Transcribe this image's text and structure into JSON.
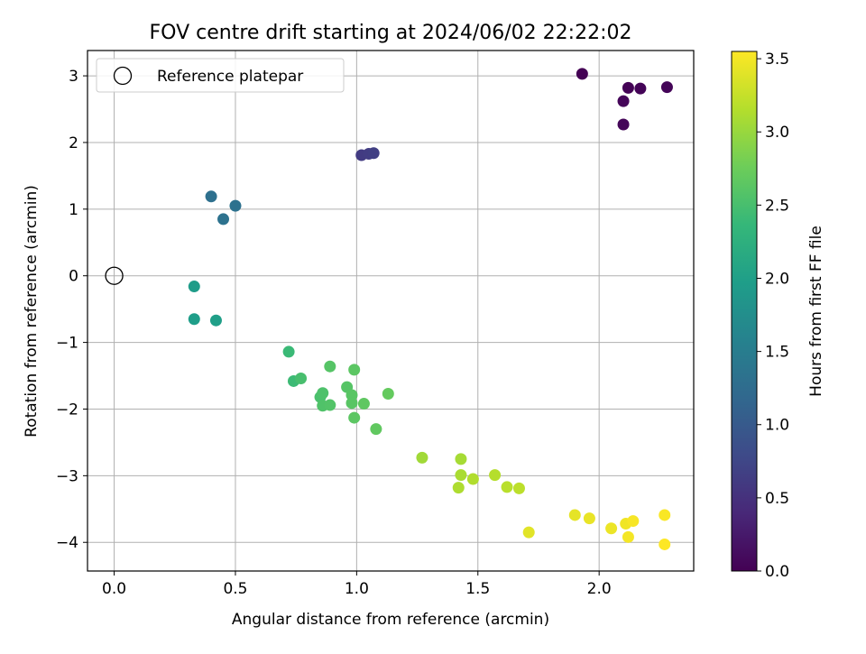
{
  "chart_data": {
    "type": "scatter",
    "title": "FOV centre drift starting at 2024/06/02 22:22:02",
    "xlabel": "Angular distance from reference (arcmin)",
    "ylabel": "Rotation from reference (arcmin)",
    "xlim": [
      -0.11,
      2.39
    ],
    "ylim": [
      -4.43,
      3.38
    ],
    "xticks": [
      0.0,
      0.5,
      1.0,
      1.5,
      2.0
    ],
    "xtick_labels": [
      "0.0",
      "0.5",
      "1.0",
      "1.5",
      "2.0"
    ],
    "yticks": [
      3,
      2,
      1,
      0,
      -1,
      -2,
      -3,
      -4
    ],
    "ytick_labels": [
      "3",
      "2",
      "1",
      "0",
      "−1",
      "−2",
      "−3",
      "−4"
    ],
    "grid": true,
    "legend": {
      "position": "upper-left",
      "entries": [
        "Reference platepar"
      ]
    },
    "reference_point": {
      "x": 0.0,
      "y": 0.0
    },
    "colorbar": {
      "label": "Hours from first FF file",
      "range": [
        0.0,
        3.55
      ],
      "ticks": [
        0.0,
        0.5,
        1.0,
        1.5,
        2.0,
        2.5,
        3.0,
        3.5
      ],
      "tick_labels": [
        "0.0",
        "0.5",
        "1.0",
        "1.5",
        "2.0",
        "2.5",
        "3.0",
        "3.5"
      ],
      "colormap": "viridis"
    },
    "points": [
      {
        "x": 1.93,
        "y": 3.03,
        "c": 0.0
      },
      {
        "x": 2.12,
        "y": 2.82,
        "c": 0.02
      },
      {
        "x": 2.17,
        "y": 2.81,
        "c": 0.03
      },
      {
        "x": 2.28,
        "y": 2.83,
        "c": 0.04
      },
      {
        "x": 2.1,
        "y": 2.62,
        "c": 0.05
      },
      {
        "x": 2.1,
        "y": 2.27,
        "c": 0.06
      },
      {
        "x": 1.02,
        "y": 1.81,
        "c": 0.62
      },
      {
        "x": 1.05,
        "y": 1.83,
        "c": 0.64
      },
      {
        "x": 1.07,
        "y": 1.84,
        "c": 0.66
      },
      {
        "x": 0.4,
        "y": 1.19,
        "c": 1.3
      },
      {
        "x": 0.5,
        "y": 1.05,
        "c": 1.32
      },
      {
        "x": 0.45,
        "y": 0.85,
        "c": 1.34
      },
      {
        "x": 0.33,
        "y": -0.16,
        "c": 1.95
      },
      {
        "x": 0.33,
        "y": -0.65,
        "c": 1.97
      },
      {
        "x": 0.42,
        "y": -0.67,
        "c": 1.99
      },
      {
        "x": 0.72,
        "y": -1.14,
        "c": 2.4
      },
      {
        "x": 0.74,
        "y": -1.58,
        "c": 2.42
      },
      {
        "x": 0.77,
        "y": -1.54,
        "c": 2.5
      },
      {
        "x": 0.85,
        "y": -1.82,
        "c": 2.52
      },
      {
        "x": 0.86,
        "y": -1.76,
        "c": 2.54
      },
      {
        "x": 0.86,
        "y": -1.95,
        "c": 2.56
      },
      {
        "x": 0.89,
        "y": -1.94,
        "c": 2.58
      },
      {
        "x": 0.89,
        "y": -1.36,
        "c": 2.6
      },
      {
        "x": 0.96,
        "y": -1.67,
        "c": 2.6
      },
      {
        "x": 0.98,
        "y": -1.79,
        "c": 2.62
      },
      {
        "x": 0.98,
        "y": -1.91,
        "c": 2.62
      },
      {
        "x": 0.99,
        "y": -1.41,
        "c": 2.64
      },
      {
        "x": 0.99,
        "y": -2.13,
        "c": 2.64
      },
      {
        "x": 1.03,
        "y": -1.92,
        "c": 2.66
      },
      {
        "x": 1.08,
        "y": -2.3,
        "c": 2.68
      },
      {
        "x": 1.13,
        "y": -1.77,
        "c": 2.7
      },
      {
        "x": 1.27,
        "y": -2.73,
        "c": 3.05
      },
      {
        "x": 1.43,
        "y": -2.75,
        "c": 3.08
      },
      {
        "x": 1.43,
        "y": -2.99,
        "c": 3.1
      },
      {
        "x": 1.42,
        "y": -3.18,
        "c": 3.12
      },
      {
        "x": 1.48,
        "y": -3.05,
        "c": 3.14
      },
      {
        "x": 1.57,
        "y": -2.99,
        "c": 3.16
      },
      {
        "x": 1.62,
        "y": -3.17,
        "c": 3.18
      },
      {
        "x": 1.67,
        "y": -3.19,
        "c": 3.2
      },
      {
        "x": 1.71,
        "y": -3.85,
        "c": 3.4
      },
      {
        "x": 1.9,
        "y": -3.59,
        "c": 3.42
      },
      {
        "x": 1.96,
        "y": -3.64,
        "c": 3.44
      },
      {
        "x": 2.05,
        "y": -3.79,
        "c": 3.46
      },
      {
        "x": 2.11,
        "y": -3.72,
        "c": 3.48
      },
      {
        "x": 2.12,
        "y": -3.92,
        "c": 3.5
      },
      {
        "x": 2.14,
        "y": -3.68,
        "c": 3.52
      },
      {
        "x": 2.27,
        "y": -3.59,
        "c": 3.53
      },
      {
        "x": 2.27,
        "y": -4.03,
        "c": 3.55
      }
    ]
  }
}
